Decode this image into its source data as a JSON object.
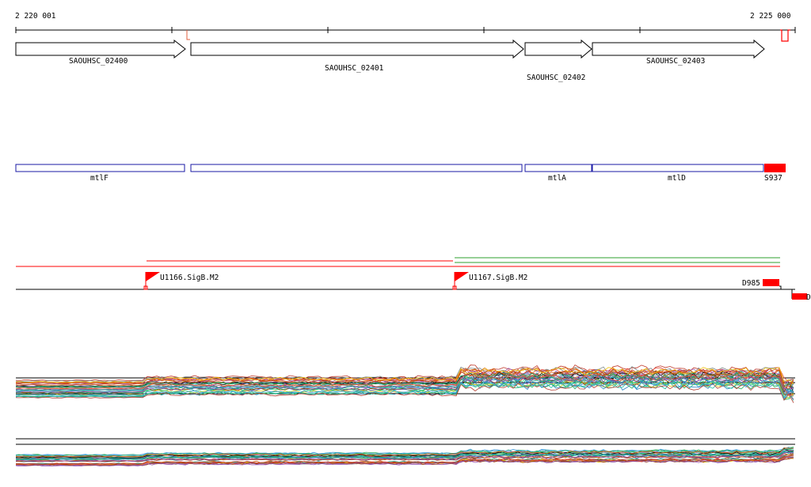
{
  "ruler": {
    "start_label": "2 220 001",
    "end_label": "2 225 000",
    "start_bp": 2220001,
    "end_bp": 2225000
  },
  "genes": [
    {
      "name": "SAOUHSC_02400",
      "start_bp": 2220001,
      "end_bp": 2221080
    },
    {
      "name": "SAOUHSC_02401",
      "start_bp": 2221112,
      "end_bp": 2223210
    },
    {
      "name": "SAOUHSC_02402",
      "start_bp": 2223220,
      "end_bp": 2223645
    },
    {
      "name": "SAOUHSC_02403",
      "start_bp": 2223650,
      "end_bp": 2224740
    }
  ],
  "operons": [
    {
      "name": "mtlF",
      "start_bp": 2220001,
      "end_bp": 2221080,
      "color": "#1a1aa6"
    },
    {
      "name": "",
      "start_bp": 2221112,
      "end_bp": 2223210,
      "color": "#1a1aa6"
    },
    {
      "name": "mtlA",
      "start_bp": 2223220,
      "end_bp": 2223645,
      "color": "#1a1aa6"
    },
    {
      "name": "mtlD",
      "start_bp": 2223650,
      "end_bp": 2224740,
      "color": "#1a1aa6"
    }
  ],
  "feature_S937": {
    "name": "S937",
    "color": "#ff0000"
  },
  "promoters": [
    {
      "name": "U1166.SigB.M2",
      "position_bp": 2220840
    },
    {
      "name": "U1167.SigB.M2",
      "position_bp": 2222825
    }
  ],
  "feature_D985": {
    "name": "D985",
    "color": "#ff0000"
  },
  "feature_D_edge": {
    "name": "D"
  },
  "colors": {
    "signal_red": "#ff0000",
    "signal_green": "#2ca02c",
    "operon_blue": "#1a1aa6",
    "ruler_black": "#000000"
  }
}
